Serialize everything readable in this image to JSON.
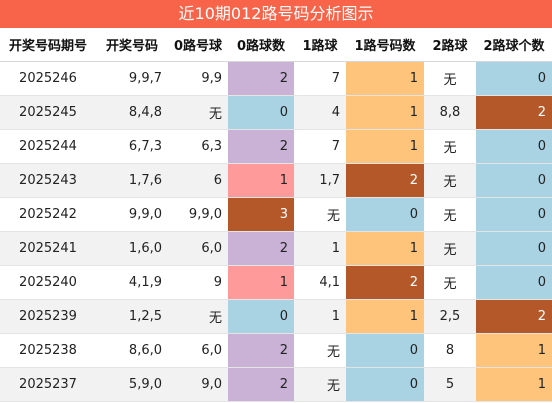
{
  "title": "近10期012路号码分析图示",
  "headers": [
    "开奖号码期号",
    "开奖号码",
    "0路号球",
    "0路球数",
    "1路球",
    "1路号码数",
    "2路球",
    "2路球个数"
  ],
  "colors": {
    "title_bg": "#f7644a",
    "purple": "#c9b2d6",
    "blue": "#a9d2e3",
    "pink": "#fe9a9a",
    "orange": "#fec47b",
    "brown": "#b4582a"
  },
  "rows": [
    {
      "period": "2025246",
      "numbers": "9,9,7",
      "zero_balls": "9,9",
      "zero_count": "2",
      "one_balls": "7",
      "one_count": "1",
      "two_balls": "无",
      "two_count": "0"
    },
    {
      "period": "2025245",
      "numbers": "8,4,8",
      "zero_balls": "无",
      "zero_count": "0",
      "one_balls": "4",
      "one_count": "1",
      "two_balls": "8,8",
      "two_count": "2"
    },
    {
      "period": "2025244",
      "numbers": "6,7,3",
      "zero_balls": "6,3",
      "zero_count": "2",
      "one_balls": "7",
      "one_count": "1",
      "two_balls": "无",
      "two_count": "0"
    },
    {
      "period": "2025243",
      "numbers": "1,7,6",
      "zero_balls": "6",
      "zero_count": "1",
      "one_balls": "1,7",
      "one_count": "2",
      "two_balls": "无",
      "two_count": "0"
    },
    {
      "period": "2025242",
      "numbers": "9,9,0",
      "zero_balls": "9,9,0",
      "zero_count": "3",
      "one_balls": "无",
      "one_count": "0",
      "two_balls": "无",
      "two_count": "0"
    },
    {
      "period": "2025241",
      "numbers": "1,6,0",
      "zero_balls": "6,0",
      "zero_count": "2",
      "one_balls": "1",
      "one_count": "1",
      "two_balls": "无",
      "two_count": "0"
    },
    {
      "period": "2025240",
      "numbers": "4,1,9",
      "zero_balls": "9",
      "zero_count": "1",
      "one_balls": "4,1",
      "one_count": "2",
      "two_balls": "无",
      "two_count": "0"
    },
    {
      "period": "2025239",
      "numbers": "1,2,5",
      "zero_balls": "无",
      "zero_count": "0",
      "one_balls": "1",
      "one_count": "1",
      "two_balls": "2,5",
      "two_count": "2"
    },
    {
      "period": "2025238",
      "numbers": "8,6,0",
      "zero_balls": "6,0",
      "zero_count": "2",
      "one_balls": "无",
      "one_count": "0",
      "two_balls": "8",
      "two_count": "1"
    },
    {
      "period": "2025237",
      "numbers": "5,9,0",
      "zero_balls": "9,0",
      "zero_count": "2",
      "one_balls": "无",
      "one_count": "0",
      "two_balls": "5",
      "two_count": "1"
    }
  ]
}
